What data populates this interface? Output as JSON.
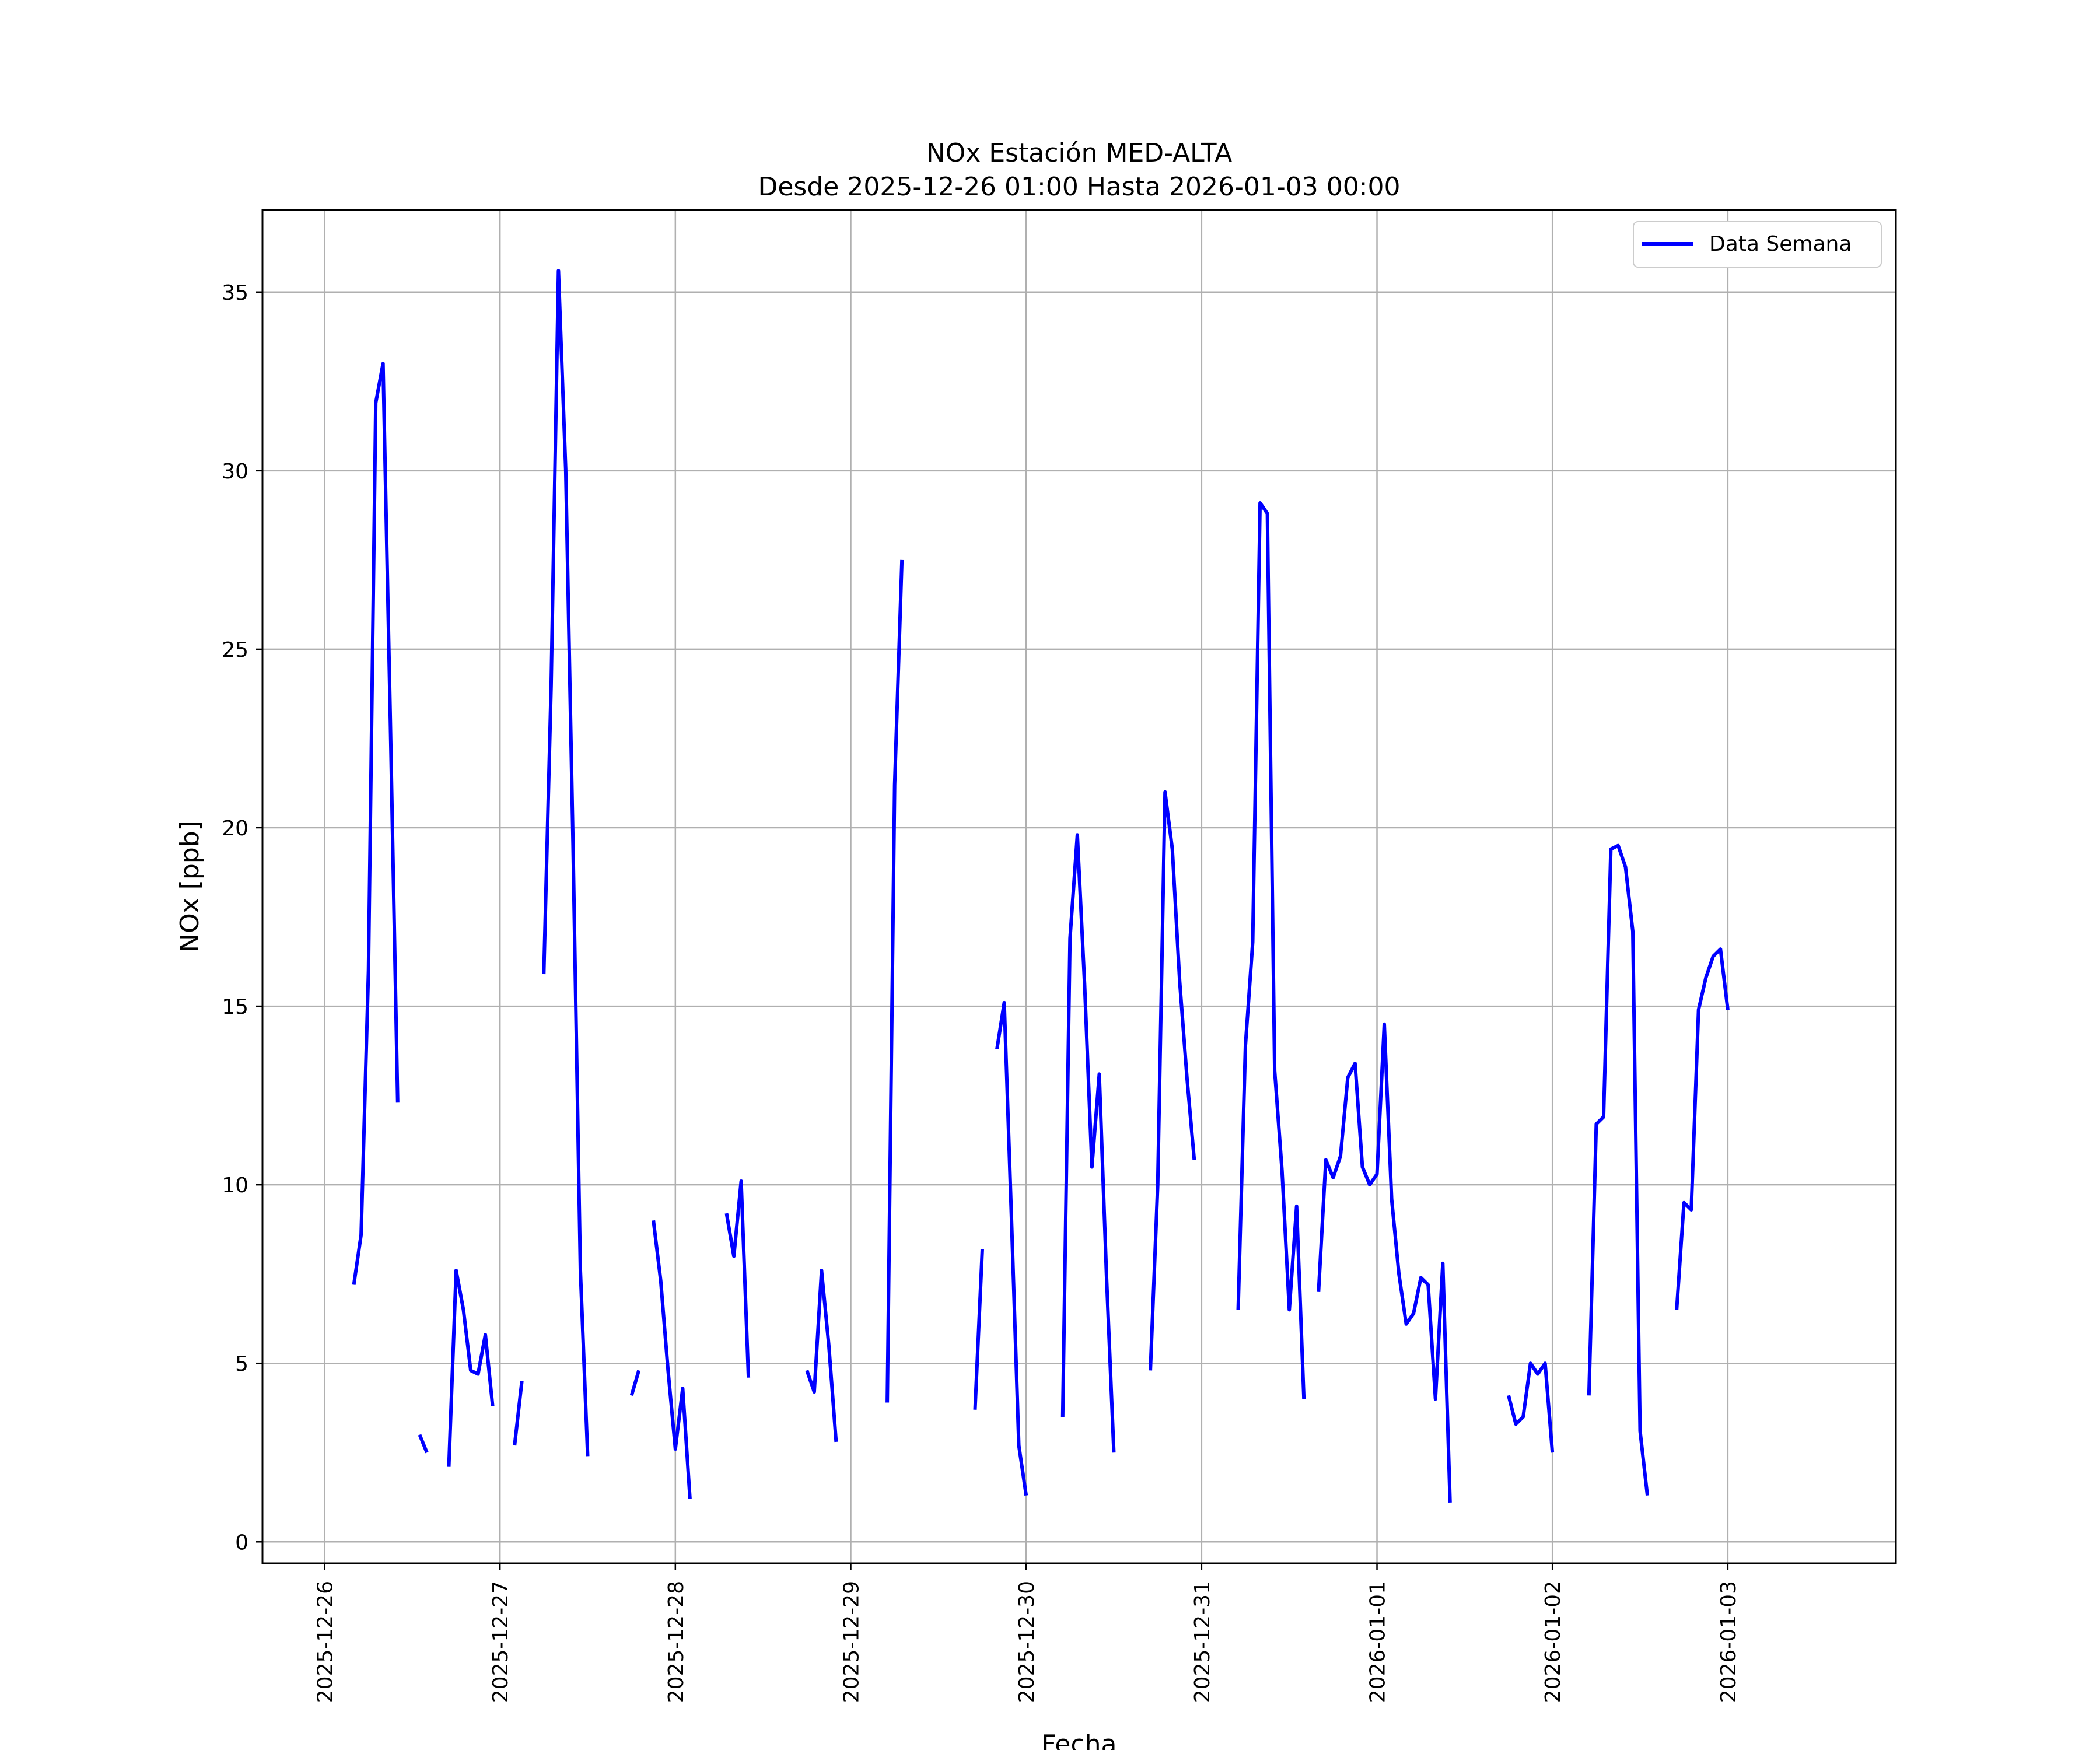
{
  "chart_data": {
    "type": "line",
    "title": "NOx Estación MED-ALTA",
    "subtitle": "Desde 2025-12-26 01:00 Hasta 2026-01-03 00:00",
    "xlabel": "Fecha",
    "ylabel": "NOx [ppb]",
    "ylim": [
      -0.6,
      37.3
    ],
    "xlim": [
      "2025-12-25 15:30",
      "2026-01-03 23:00"
    ],
    "yticks": [
      0,
      5,
      10,
      15,
      20,
      25,
      30,
      35
    ],
    "xticks": [
      "2025-12-26",
      "2025-12-27",
      "2025-12-28",
      "2025-12-29",
      "2025-12-30",
      "2025-12-31",
      "2026-01-01",
      "2026-01-02",
      "2026-01-03"
    ],
    "grid": true,
    "legend": {
      "position": "top-right",
      "entries": [
        "Data Semana"
      ]
    },
    "series": [
      {
        "name": "Data Semana",
        "color": "#0000ff",
        "segments": [
          [
            [
              "2025-12-26 04:00",
              7.2
            ],
            [
              "2025-12-26 05:00",
              8.6
            ],
            [
              "2025-12-26 06:00",
              16.0
            ],
            [
              "2025-12-26 07:00",
              31.9
            ],
            [
              "2025-12-26 08:00",
              33.0
            ],
            [
              "2025-12-26 09:00",
              23.0
            ],
            [
              "2025-12-26 10:00",
              12.3
            ]
          ],
          [
            [
              "2025-12-26 13:00",
              3.0
            ],
            [
              "2025-12-26 14:00",
              2.5
            ]
          ],
          [
            [
              "2025-12-26 17:00",
              2.1
            ],
            [
              "2025-12-26 18:00",
              7.6
            ],
            [
              "2025-12-26 19:00",
              6.5
            ],
            [
              "2025-12-26 20:00",
              4.8
            ],
            [
              "2025-12-26 21:00",
              4.7
            ],
            [
              "2025-12-26 22:00",
              5.8
            ],
            [
              "2025-12-26 23:00",
              3.8
            ]
          ],
          [
            [
              "2025-12-27 02:00",
              2.7
            ],
            [
              "2025-12-27 03:00",
              4.5
            ]
          ],
          [
            [
              "2025-12-27 06:00",
              15.9
            ],
            [
              "2025-12-27 07:00",
              24.0
            ],
            [
              "2025-12-27 08:00",
              35.6
            ],
            [
              "2025-12-27 09:00",
              30.0
            ],
            [
              "2025-12-27 10:00",
              19.5
            ],
            [
              "2025-12-27 11:00",
              7.6
            ],
            [
              "2025-12-27 12:00",
              2.4
            ]
          ],
          [
            [
              "2025-12-27 18:00",
              4.1
            ],
            [
              "2025-12-27 19:00",
              4.8
            ]
          ],
          [
            [
              "2025-12-27 21:00",
              9.0
            ],
            [
              "2025-12-27 22:00",
              7.3
            ],
            [
              "2025-12-27 23:00",
              4.8
            ],
            [
              "2025-12-28 00:00",
              2.6
            ],
            [
              "2025-12-28 01:00",
              4.3
            ],
            [
              "2025-12-28 02:00",
              1.2
            ]
          ],
          [
            [
              "2025-12-28 07:00",
              9.2
            ],
            [
              "2025-12-28 08:00",
              8.0
            ],
            [
              "2025-12-28 09:00",
              10.1
            ],
            [
              "2025-12-28 10:00",
              4.6
            ]
          ],
          [
            [
              "2025-12-28 18:00",
              4.8
            ],
            [
              "2025-12-28 19:00",
              4.2
            ],
            [
              "2025-12-28 20:00",
              7.6
            ],
            [
              "2025-12-28 21:00",
              5.5
            ],
            [
              "2025-12-28 22:00",
              2.8
            ]
          ],
          [
            [
              "2025-12-29 05:00",
              3.9
            ],
            [
              "2025-12-29 06:00",
              21.2
            ],
            [
              "2025-12-29 07:00",
              27.5
            ]
          ],
          [
            [
              "2025-12-29 17:00",
              3.7
            ],
            [
              "2025-12-29 18:00",
              8.2
            ]
          ],
          [
            [
              "2025-12-29 20:00",
              13.8
            ],
            [
              "2025-12-29 21:00",
              15.1
            ],
            [
              "2025-12-29 22:00",
              9.0
            ],
            [
              "2025-12-29 23:00",
              2.7
            ],
            [
              "2025-12-30 00:00",
              1.3
            ]
          ],
          [
            [
              "2025-12-30 05:00",
              3.5
            ],
            [
              "2025-12-30 06:00",
              16.9
            ],
            [
              "2025-12-30 07:00",
              19.8
            ],
            [
              "2025-12-30 08:00",
              15.6
            ],
            [
              "2025-12-30 09:00",
              10.5
            ],
            [
              "2025-12-30 10:00",
              13.1
            ],
            [
              "2025-12-30 11:00",
              7.4
            ],
            [
              "2025-12-30 12:00",
              2.5
            ]
          ],
          [
            [
              "2025-12-30 17:00",
              4.8
            ],
            [
              "2025-12-30 18:00",
              10.0
            ],
            [
              "2025-12-30 19:00",
              21.0
            ],
            [
              "2025-12-30 20:00",
              19.4
            ],
            [
              "2025-12-30 21:00",
              15.7
            ],
            [
              "2025-12-30 22:00",
              13.0
            ],
            [
              "2025-12-30 23:00",
              10.7
            ]
          ],
          [
            [
              "2025-12-31 05:00",
              6.5
            ],
            [
              "2025-12-31 06:00",
              13.9
            ],
            [
              "2025-12-31 07:00",
              16.8
            ],
            [
              "2025-12-31 08:00",
              29.1
            ],
            [
              "2025-12-31 09:00",
              28.8
            ],
            [
              "2025-12-31 10:00",
              13.2
            ],
            [
              "2025-12-31 11:00",
              10.4
            ],
            [
              "2025-12-31 12:00",
              6.5
            ],
            [
              "2025-12-31 13:00",
              9.4
            ],
            [
              "2025-12-31 14:00",
              4.0
            ]
          ],
          [
            [
              "2025-12-31 16:00",
              7.0
            ],
            [
              "2025-12-31 17:00",
              10.7
            ],
            [
              "2025-12-31 18:00",
              10.2
            ],
            [
              "2025-12-31 19:00",
              10.8
            ],
            [
              "2025-12-31 20:00",
              13.0
            ],
            [
              "2025-12-31 21:00",
              13.4
            ],
            [
              "2025-12-31 22:00",
              10.5
            ],
            [
              "2025-12-31 23:00",
              10.0
            ],
            [
              "2026-01-01 00:00",
              10.3
            ],
            [
              "2026-01-01 01:00",
              14.5
            ],
            [
              "2026-01-01 02:00",
              9.6
            ],
            [
              "2026-01-01 03:00",
              7.5
            ],
            [
              "2026-01-01 04:00",
              6.1
            ],
            [
              "2026-01-01 05:00",
              6.4
            ],
            [
              "2026-01-01 06:00",
              7.4
            ],
            [
              "2026-01-01 07:00",
              7.2
            ],
            [
              "2026-01-01 08:00",
              4.0
            ],
            [
              "2026-01-01 09:00",
              7.8
            ],
            [
              "2026-01-01 10:00",
              1.1
            ]
          ],
          [
            [
              "2026-01-01 18:00",
              4.1
            ],
            [
              "2026-01-01 19:00",
              3.3
            ],
            [
              "2026-01-01 20:00",
              3.5
            ],
            [
              "2026-01-01 21:00",
              5.0
            ],
            [
              "2026-01-01 22:00",
              4.7
            ],
            [
              "2026-01-01 23:00",
              5.0
            ],
            [
              "2026-01-02 00:00",
              2.5
            ]
          ],
          [
            [
              "2026-01-02 05:00",
              4.1
            ],
            [
              "2026-01-02 06:00",
              11.7
            ],
            [
              "2026-01-02 07:00",
              11.9
            ],
            [
              "2026-01-02 08:00",
              19.4
            ],
            [
              "2026-01-02 09:00",
              19.5
            ],
            [
              "2026-01-02 10:00",
              18.9
            ],
            [
              "2026-01-02 11:00",
              17.1
            ],
            [
              "2026-01-02 12:00",
              3.1
            ],
            [
              "2026-01-02 13:00",
              1.3
            ]
          ],
          [
            [
              "2026-01-02 17:00",
              6.5
            ],
            [
              "2026-01-02 18:00",
              9.5
            ],
            [
              "2026-01-02 19:00",
              9.3
            ],
            [
              "2026-01-02 20:00",
              14.9
            ],
            [
              "2026-01-02 21:00",
              15.8
            ],
            [
              "2026-01-02 22:00",
              16.4
            ],
            [
              "2026-01-02 23:00",
              16.6
            ],
            [
              "2026-01-03 00:00",
              14.9
            ]
          ]
        ]
      }
    ]
  }
}
